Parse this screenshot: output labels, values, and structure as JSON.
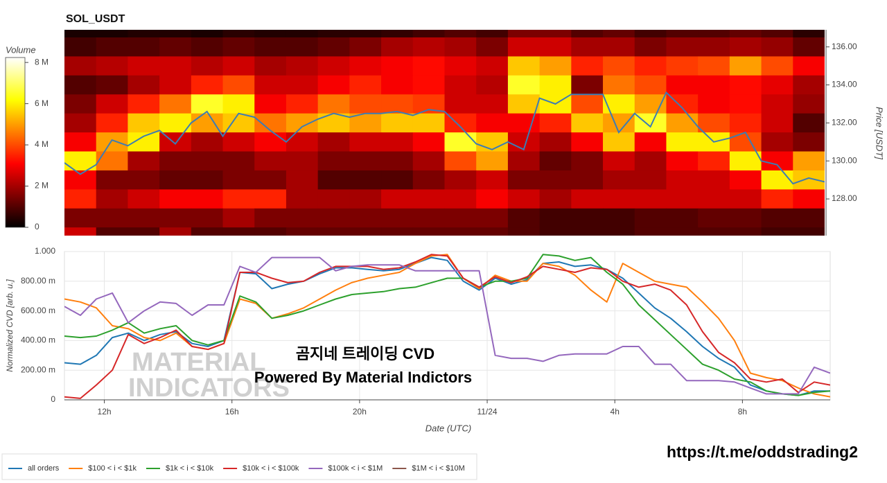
{
  "chart_data": [
    {
      "type": "heatmap",
      "title": "SOL_USDT",
      "colorbar_title": "Volume",
      "colorscale": "hot",
      "ylabel": "Price [USDT]",
      "yaxis_side": "right",
      "xlim": [
        10.75,
        34.75
      ],
      "ylim": [
        126.07,
        136.9
      ],
      "yticks": [
        {
          "value": 128,
          "label": "128.00"
        },
        {
          "value": 130,
          "label": "130.00"
        },
        {
          "value": 132,
          "label": "132.00"
        },
        {
          "value": 134,
          "label": "134.00"
        },
        {
          "value": 136,
          "label": "136.00"
        }
      ],
      "zlim": [
        0,
        8240000
      ],
      "zticks": [
        0,
        {
          "value": 2000000,
          "label": "2 M"
        },
        {
          "value": 4000000,
          "label": "4 M"
        },
        {
          "value": 6000000,
          "label": "6 M"
        },
        {
          "value": 8000000,
          "label": "8 M"
        }
      ],
      "x": [
        11.25,
        12.25,
        13.25,
        14.25,
        15.25,
        16.25,
        17.25,
        18.25,
        19.25,
        20.25,
        21.25,
        22.25,
        23.25,
        24.25,
        25.25,
        26.25,
        27.25,
        28.25,
        29.25,
        30.25,
        31.25,
        32.25,
        33.25,
        34.25
      ],
      "y": [
        137,
        136,
        135,
        134,
        133,
        132,
        131,
        130,
        129,
        128,
        127,
        126
      ],
      "z": [
        [
          300000,
          300000,
          400000,
          400000,
          300000,
          500000,
          400000,
          400000,
          500000,
          500000,
          600000,
          800000,
          1000000,
          800000,
          1500000,
          1500000,
          1000000,
          1200000,
          800000,
          1000000,
          1000000,
          1200000,
          1000000,
          500000
        ],
        [
          800000,
          1000000,
          1000000,
          1200000,
          1000000,
          1200000,
          1000000,
          1000000,
          1200000,
          1500000,
          2000000,
          2200000,
          2000000,
          1500000,
          2500000,
          2500000,
          2000000,
          2000000,
          1500000,
          1800000,
          1800000,
          2000000,
          1800000,
          1200000
        ],
        [
          2000000,
          2200000,
          2500000,
          2500000,
          2200000,
          2500000,
          2000000,
          2200000,
          2500000,
          2800000,
          3000000,
          3200000,
          2800000,
          2500000,
          5500000,
          5000000,
          3500000,
          4000000,
          3500000,
          3800000,
          4000000,
          5000000,
          4000000,
          3000000
        ],
        [
          1000000,
          1200000,
          2000000,
          2500000,
          3500000,
          4000000,
          2500000,
          2500000,
          3000000,
          3500000,
          3000000,
          3200000,
          2500000,
          2200000,
          6500000,
          6000000,
          1500000,
          4500000,
          4000000,
          3000000,
          3000000,
          3200000,
          2800000,
          2000000
        ],
        [
          1500000,
          2500000,
          3500000,
          4500000,
          6500000,
          6000000,
          3000000,
          3500000,
          4500000,
          4000000,
          4000000,
          3800000,
          2500000,
          2500000,
          5500000,
          6000000,
          4000000,
          6000000,
          5000000,
          3500000,
          3000000,
          3200000,
          2500000,
          1800000
        ],
        [
          2000000,
          3500000,
          5500000,
          6000000,
          5000000,
          5500000,
          4500000,
          5000000,
          5500000,
          5000000,
          5500000,
          5500000,
          3500000,
          3000000,
          3000000,
          3500000,
          5500000,
          5000000,
          6500000,
          5000000,
          4000000,
          3500000,
          2500000,
          1000000
        ],
        [
          3000000,
          5000000,
          6000000,
          2500000,
          2000000,
          2500000,
          3000000,
          2500000,
          2000000,
          2500000,
          2500000,
          3000000,
          6500000,
          5500000,
          2500000,
          2000000,
          3000000,
          5500000,
          3000000,
          6000000,
          6000000,
          4000000,
          2000000,
          1500000
        ],
        [
          6000000,
          4500000,
          2000000,
          1500000,
          1500000,
          1500000,
          2000000,
          2000000,
          1500000,
          1500000,
          1500000,
          2000000,
          4000000,
          5000000,
          2000000,
          1200000,
          1500000,
          2500000,
          2000000,
          3000000,
          3500000,
          6000000,
          3000000,
          5000000
        ],
        [
          3000000,
          1500000,
          1500000,
          1200000,
          1200000,
          1500000,
          1500000,
          2000000,
          1000000,
          1000000,
          1000000,
          1500000,
          2000000,
          2500000,
          1500000,
          1500000,
          1500000,
          2000000,
          2000000,
          2500000,
          2500000,
          3000000,
          6000000,
          5500000
        ],
        [
          3500000,
          2000000,
          2500000,
          3000000,
          3000000,
          3500000,
          3500000,
          2000000,
          2000000,
          2000000,
          2500000,
          2500000,
          2500000,
          3000000,
          2500000,
          2000000,
          2500000,
          2500000,
          2500000,
          2500000,
          2500000,
          2500000,
          3500000,
          3000000
        ],
        [
          1500000,
          1500000,
          1500000,
          1500000,
          1500000,
          2000000,
          1500000,
          1500000,
          1500000,
          1500000,
          1500000,
          1500000,
          1500000,
          1500000,
          1000000,
          800000,
          800000,
          800000,
          1000000,
          1000000,
          1200000,
          1200000,
          1000000,
          1000000
        ],
        [
          2500000,
          1000000,
          1000000,
          2000000,
          1000000,
          1000000,
          1000000,
          1200000,
          1200000,
          1200000,
          1200000,
          1200000,
          1200000,
          1200000,
          1000000,
          800000,
          800000,
          800000,
          1000000,
          1000000,
          1000000,
          1000000,
          800000,
          800000
        ]
      ],
      "price": {
        "color": "#3c7cb4",
        "x": [
          10.75,
          11.25,
          11.75,
          12.25,
          12.75,
          13.25,
          13.75,
          14.25,
          14.75,
          15.25,
          15.75,
          16.25,
          16.75,
          17.25,
          17.75,
          18.25,
          18.75,
          19.25,
          19.75,
          20.25,
          20.75,
          21.25,
          21.75,
          22.25,
          22.75,
          23.25,
          23.75,
          24.25,
          24.75,
          25.25,
          25.75,
          26.25,
          26.75,
          27.25,
          27.75,
          28.25,
          28.75,
          29.25,
          29.75,
          30.25,
          30.75,
          31.25,
          31.75,
          32.25,
          32.75,
          33.25,
          33.75,
          34.25,
          34.75
        ],
        "values": [
          129.9,
          129.3,
          129.8,
          131.1,
          130.8,
          131.3,
          131.6,
          130.9,
          132.0,
          132.6,
          131.3,
          132.5,
          132.3,
          131.6,
          131.0,
          131.8,
          132.2,
          132.5,
          132.3,
          132.5,
          132.5,
          132.6,
          132.4,
          132.7,
          132.6,
          131.8,
          130.9,
          130.6,
          131.0,
          130.6,
          133.3,
          133.0,
          133.5,
          133.5,
          133.5,
          131.5,
          132.5,
          131.8,
          133.6,
          132.8,
          131.8,
          131.0,
          131.2,
          131.5,
          130.0,
          129.8,
          128.8,
          129.1,
          128.9
        ]
      }
    },
    {
      "type": "line",
      "xlabel": "Date (UTC)",
      "ylabel": "Normalized CVD [arb. u.]",
      "grid": true,
      "legend": "bottom-left",
      "xlim": [
        10.75,
        34.75
      ],
      "xticks": [
        {
          "value": 12,
          "label": "12h"
        },
        {
          "value": 16,
          "label": "16h"
        },
        {
          "value": 20,
          "label": "20h"
        },
        {
          "value": 24,
          "label": "11/24"
        },
        {
          "value": 28,
          "label": "4h"
        },
        {
          "value": 32,
          "label": "8h"
        }
      ],
      "ylim": [
        0,
        1
      ],
      "yticks": [
        0,
        {
          "value": 0.2,
          "label": "200.00 m"
        },
        {
          "value": 0.4,
          "label": "400.00 m"
        },
        {
          "value": 0.6,
          "label": "600.00 m"
        },
        {
          "value": 0.8,
          "label": "800.00 m"
        },
        {
          "value": 1,
          "label": "1.000"
        }
      ],
      "x": [
        10.75,
        11.25,
        11.75,
        12.25,
        12.75,
        13.25,
        13.75,
        14.25,
        14.75,
        15.25,
        15.75,
        16.25,
        16.75,
        17.25,
        17.75,
        18.25,
        18.75,
        19.25,
        19.75,
        20.25,
        20.75,
        21.25,
        21.75,
        22.25,
        22.75,
        23.25,
        23.75,
        24.25,
        24.75,
        25.25,
        25.75,
        26.25,
        26.75,
        27.25,
        27.75,
        28.25,
        28.75,
        29.25,
        29.75,
        30.25,
        30.75,
        31.25,
        31.75,
        32.25,
        32.75,
        33.25,
        33.75,
        34.25,
        34.75
      ],
      "series": [
        {
          "name": "all orders",
          "color": "#1f77b4",
          "values": [
            0.25,
            0.24,
            0.3,
            0.42,
            0.45,
            0.4,
            0.44,
            0.46,
            0.38,
            0.36,
            0.4,
            0.86,
            0.85,
            0.75,
            0.78,
            0.8,
            0.85,
            0.89,
            0.89,
            0.88,
            0.87,
            0.88,
            0.92,
            0.96,
            0.94,
            0.8,
            0.74,
            0.82,
            0.78,
            0.81,
            0.92,
            0.93,
            0.9,
            0.91,
            0.88,
            0.82,
            0.72,
            0.62,
            0.55,
            0.46,
            0.36,
            0.28,
            0.22,
            0.1,
            0.06,
            0.04,
            0.03,
            0.06,
            0.06
          ]
        },
        {
          "name": "$100 < i < $1k",
          "color": "#ff7f0e",
          "values": [
            0.68,
            0.66,
            0.62,
            0.5,
            0.48,
            0.42,
            0.4,
            0.45,
            0.36,
            0.34,
            0.38,
            0.68,
            0.65,
            0.55,
            0.58,
            0.62,
            0.68,
            0.74,
            0.79,
            0.82,
            0.84,
            0.86,
            0.92,
            0.97,
            0.98,
            0.82,
            0.75,
            0.84,
            0.8,
            0.8,
            0.92,
            0.9,
            0.84,
            0.74,
            0.66,
            0.92,
            0.86,
            0.8,
            0.78,
            0.76,
            0.66,
            0.55,
            0.4,
            0.18,
            0.15,
            0.13,
            0.08,
            0.04,
            0.02
          ]
        },
        {
          "name": "$1k < i < $10k",
          "color": "#2ca02c",
          "values": [
            0.43,
            0.42,
            0.43,
            0.47,
            0.52,
            0.45,
            0.48,
            0.5,
            0.4,
            0.37,
            0.4,
            0.7,
            0.66,
            0.55,
            0.57,
            0.6,
            0.64,
            0.68,
            0.71,
            0.72,
            0.73,
            0.75,
            0.76,
            0.79,
            0.82,
            0.82,
            0.76,
            0.8,
            0.8,
            0.82,
            0.98,
            0.97,
            0.94,
            0.96,
            0.86,
            0.78,
            0.64,
            0.54,
            0.44,
            0.34,
            0.24,
            0.2,
            0.14,
            0.12,
            0.06,
            0.04,
            0.03,
            0.05,
            0.06
          ]
        },
        {
          "name": "$10k < i < $100k",
          "color": "#d62728",
          "values": [
            0.02,
            0.01,
            0.1,
            0.2,
            0.44,
            0.38,
            0.42,
            0.47,
            0.36,
            0.34,
            0.38,
            0.86,
            0.86,
            0.82,
            0.79,
            0.8,
            0.86,
            0.9,
            0.9,
            0.9,
            0.88,
            0.89,
            0.93,
            0.98,
            0.97,
            0.82,
            0.76,
            0.83,
            0.79,
            0.83,
            0.9,
            0.88,
            0.86,
            0.89,
            0.88,
            0.8,
            0.76,
            0.78,
            0.74,
            0.64,
            0.46,
            0.32,
            0.25,
            0.14,
            0.12,
            0.14,
            0.05,
            0.12,
            0.1
          ]
        },
        {
          "name": "$100k < i < $1M",
          "color": "#9467bd",
          "values": [
            0.63,
            0.57,
            0.68,
            0.72,
            0.52,
            0.6,
            0.66,
            0.65,
            0.57,
            0.64,
            0.64,
            0.9,
            0.86,
            0.96,
            0.96,
            0.96,
            0.96,
            0.87,
            0.9,
            0.91,
            0.91,
            0.91,
            0.87,
            0.87,
            0.87,
            0.87,
            0.87,
            0.3,
            0.28,
            0.28,
            0.26,
            0.3,
            0.31,
            0.31,
            0.31,
            0.36,
            0.36,
            0.24,
            0.24,
            0.13,
            0.13,
            0.13,
            0.12,
            0.08,
            0.04,
            0.04,
            0.04,
            0.22,
            0.18
          ]
        },
        {
          "name": "$1M < i < $10M",
          "color": "#8c564b",
          "values": [
            null,
            null,
            null,
            null,
            null,
            null,
            null,
            null,
            null,
            null,
            null,
            null,
            null,
            null,
            null,
            null,
            null,
            null,
            null,
            null,
            null,
            null,
            null,
            null,
            null,
            null,
            null,
            null,
            null,
            null,
            null,
            null,
            null,
            null,
            null,
            null,
            null,
            null,
            null,
            null,
            null,
            null,
            null,
            null,
            null,
            null,
            null,
            null,
            null
          ]
        }
      ],
      "annotations": {
        "watermark": [
          "MATERIAL",
          "INDICATORS"
        ],
        "overlay": [
          "곰지네 트레이딩 CVD",
          "Powered By Material Indictors"
        ],
        "link": "https://t.me/oddstrading2"
      }
    }
  ]
}
